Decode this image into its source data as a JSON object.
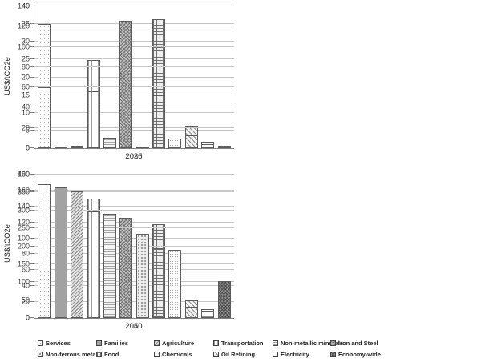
{
  "ylabel": "US$/tCO2e",
  "colors": {
    "background": "#ffffff",
    "gridline": "#c6c6c6",
    "axis": "#808080",
    "text": "#404040",
    "bar_border": "#5c5c5c",
    "solid_gray_series": "#a2a2a2",
    "dark_gray_series": "#8f8f8f"
  },
  "legend": {
    "position": "bottom",
    "rows_of": 6,
    "items": [
      {
        "label": "Services",
        "pattern": "services",
        "swatch": "light-dots"
      },
      {
        "label": "Families",
        "pattern": "families",
        "swatch": "solid-gray"
      },
      {
        "label": "Agriculture",
        "pattern": "agriculture",
        "swatch": "diagonal-dense"
      },
      {
        "label": "Transportation",
        "pattern": "transportation",
        "swatch": "vertical-stripes"
      },
      {
        "label": "Non-metallic minerals",
        "pattern": "nonmetallic",
        "swatch": "horizontal-zigzag"
      },
      {
        "label": "Iron and Steel",
        "pattern": "ironsteel",
        "swatch": "diagonal-weave"
      },
      {
        "label": "Non-ferrous metals",
        "pattern": "nonferrous",
        "swatch": "medium-dots"
      },
      {
        "label": "Food",
        "pattern": "food",
        "swatch": "plaid-grid"
      },
      {
        "label": "Chemicals",
        "pattern": "chemicals",
        "swatch": "fine-dots"
      },
      {
        "label": "Oil Refining",
        "pattern": "oilrefining",
        "swatch": "diagonal-light"
      },
      {
        "label": "Electricity",
        "pattern": "electricity",
        "swatch": "horizontal-lines"
      },
      {
        "label": "Economy-wide",
        "pattern": "economywide",
        "swatch": "dark-checker"
      }
    ]
  },
  "chart_data": [
    {
      "type": "bar",
      "title": "2025",
      "xlabel": "2025",
      "ylabel": "US$/tCO2e",
      "ylim": [
        0,
        40
      ],
      "ytick_step": 5,
      "grid": true,
      "categories": [
        "Services",
        "Families",
        "Agriculture",
        "Transportation",
        "Non-metallic minerals",
        "Iron and Steel",
        "Non-ferrous metals",
        "Food",
        "Chemicals",
        "Oil Refining",
        "Electricity",
        "Economy-wide"
      ],
      "values": [
        35,
        0.1,
        0.3,
        24.8,
        0.1,
        12,
        0.1,
        36.3,
        0.1,
        6.4,
        1.8,
        0.2
      ]
    },
    {
      "type": "bar",
      "title": "2030",
      "xlabel": "2030",
      "ylabel": "US$/tCO2e",
      "ylim": [
        0,
        140
      ],
      "ytick_step": 20,
      "grid": true,
      "categories": [
        "Services",
        "Families",
        "Agriculture",
        "Transportation",
        "Non-metallic minerals",
        "Iron and Steel",
        "Non-ferrous metals",
        "Food",
        "Chemicals",
        "Oil Refining",
        "Electricity",
        "Economy-wide"
      ],
      "values": [
        60,
        1,
        2,
        56,
        10,
        126,
        0.5,
        52,
        9.5,
        12.5,
        4,
        2.5
      ]
    },
    {
      "type": "bar",
      "title": "2040",
      "xlabel": "2040",
      "ylabel": "US$/tCO2e",
      "ylim": [
        0,
        180
      ],
      "ytick_step": 20,
      "grid": true,
      "categories": [
        "Services",
        "Families",
        "Agriculture",
        "Transportation",
        "Non-metallic minerals",
        "Iron and Steel",
        "Non-ferrous metals",
        "Food",
        "Chemicals",
        "Oil Refining",
        "Electricity",
        "Economy-wide"
      ],
      "values": [
        165,
        68,
        77,
        150,
        105,
        126,
        106,
        118,
        74,
        22,
        11,
        37
      ]
    },
    {
      "type": "bar",
      "title": "2050",
      "xlabel": "2050",
      "ylabel": "US$/tCO2e",
      "ylim": [
        0,
        400
      ],
      "ytick_step": 50,
      "grid": true,
      "categories": [
        "Services",
        "Families",
        "Agriculture",
        "Transportation",
        "Non-metallic minerals",
        "Iron and Steel",
        "Non-ferrous metals",
        "Food",
        "Chemicals",
        "Oil Refining",
        "Electricity",
        "Economy-wide"
      ],
      "values": [
        373,
        364,
        354,
        298,
        290,
        233,
        210,
        194,
        190,
        32,
        21,
        103
      ]
    }
  ]
}
